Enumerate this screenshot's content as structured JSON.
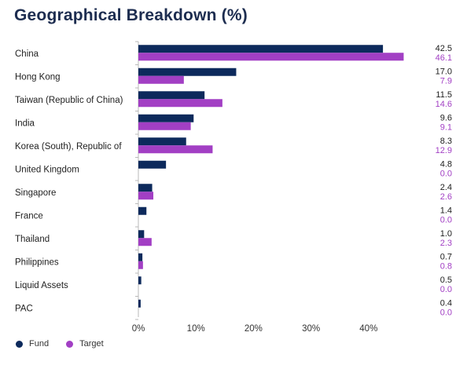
{
  "chart_data": {
    "type": "bar",
    "orientation": "horizontal",
    "title": "Geographical Breakdown (%)",
    "categories": [
      "China",
      "Hong Kong",
      "Taiwan (Republic of China)",
      "India",
      "Korea (South), Republic of",
      "United Kingdom",
      "Singapore",
      "France",
      "Thailand",
      "Philippines",
      "Liquid Assets",
      "PAC"
    ],
    "series": [
      {
        "name": "Fund",
        "color": "#0d2a5c",
        "values": [
          42.5,
          17.0,
          11.5,
          9.6,
          8.3,
          4.8,
          2.4,
          1.4,
          1.0,
          0.7,
          0.5,
          0.4
        ],
        "labels": [
          "42.5",
          "17.0",
          "11.5",
          "9.6",
          "8.3",
          "4.8",
          "2.4",
          "1.4",
          "1.0",
          "0.7",
          "0.5",
          "0.4"
        ]
      },
      {
        "name": "Target",
        "color": "#a23fc4",
        "values": [
          46.1,
          7.9,
          14.6,
          9.1,
          12.9,
          0.0,
          2.6,
          0.0,
          2.3,
          0.8,
          0.0,
          0.0
        ],
        "labels": [
          "46.1",
          "7.9",
          "14.6",
          "9.1",
          "12.9",
          "0.0",
          "2.6",
          "0.0",
          "2.3",
          "0.8",
          "0.0",
          "0.0"
        ]
      }
    ],
    "xlim": [
      0,
      50
    ],
    "xticks": [
      0,
      10,
      20,
      30,
      40
    ],
    "xtick_labels": [
      "0%",
      "10%",
      "20%",
      "30%",
      "40%"
    ],
    "legend_position": "bottom-left",
    "grid": false
  }
}
